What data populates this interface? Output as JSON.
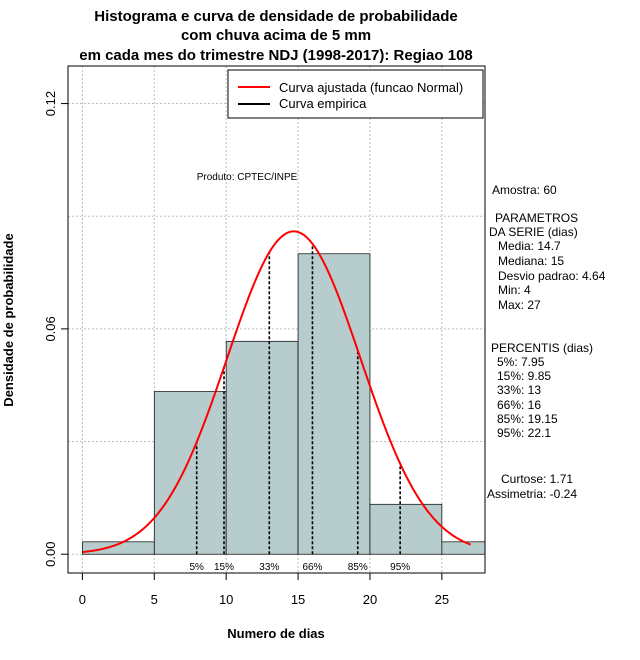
{
  "chart_data": {
    "type": "bar",
    "title_lines": [
      "Histograma e curva de densidade de probabilidade",
      "com chuva acima de 5 mm",
      "em cada mes do trimestre NDJ (1998-2017): Regiao 108"
    ],
    "xlabel": "Numero de dias",
    "ylabel": "Densidade de probabilidade",
    "xlim": [
      -1,
      28
    ],
    "ylim": [
      -0.005,
      0.13
    ],
    "x_ticks": [
      0,
      5,
      10,
      15,
      20,
      25
    ],
    "y_ticks": [
      0.0,
      0.06,
      0.12
    ],
    "y_tick_labels": [
      "0.00",
      "0.06",
      "0.12"
    ],
    "grid": true,
    "hist_bins": [
      {
        "from": 0,
        "to": 5,
        "density": 0.0033
      },
      {
        "from": 5,
        "to": 10,
        "density": 0.0433
      },
      {
        "from": 10,
        "to": 15,
        "density": 0.0567
      },
      {
        "from": 15,
        "to": 20,
        "density": 0.08
      },
      {
        "from": 20,
        "to": 25,
        "density": 0.0133
      },
      {
        "from": 25,
        "to": 30,
        "density": 0.0033
      }
    ],
    "bar_color": "#b7cccc",
    "normal_curve": {
      "mean": 14.7,
      "sd": 4.64,
      "x_range": [
        0,
        27
      ],
      "color": "#ff0000"
    },
    "legend": {
      "position": "top-right",
      "entries": [
        {
          "label": "Curva ajustada (funcao Normal)",
          "color": "#ff0000"
        },
        {
          "label": "Curva empirica",
          "color": "#000000"
        }
      ]
    },
    "percentile_lines": [
      {
        "label": "5%",
        "x": 7.95
      },
      {
        "label": "15%",
        "x": 9.85
      },
      {
        "label": "33%",
        "x": 13
      },
      {
        "label": "66%",
        "x": 16
      },
      {
        "label": "85%",
        "x": 19.15
      },
      {
        "label": "95%",
        "x": 22.1
      }
    ],
    "annotation": "Produto: CPTEC/INPE",
    "side_text": {
      "amostra": "Amostra: 60",
      "parametros_title1": "PARAMETROS",
      "parametros_title2": "DA SERIE (dias)",
      "media": "Media: 14.7",
      "mediana": "Mediana: 15",
      "desvio": "Desvio padrao: 4.64",
      "min": "Min: 4",
      "max": "Max: 27",
      "percentis_title": "PERCENTIS (dias)",
      "p5": "5%: 7.95",
      "p15": "15%: 9.85",
      "p33": "33%: 13",
      "p66": "66%: 16",
      "p85": "85%: 19.15",
      "p95": "95%: 22.1",
      "curtose": "Curtose: 1.71",
      "assimetria": "Assimetria: -0.24"
    }
  }
}
